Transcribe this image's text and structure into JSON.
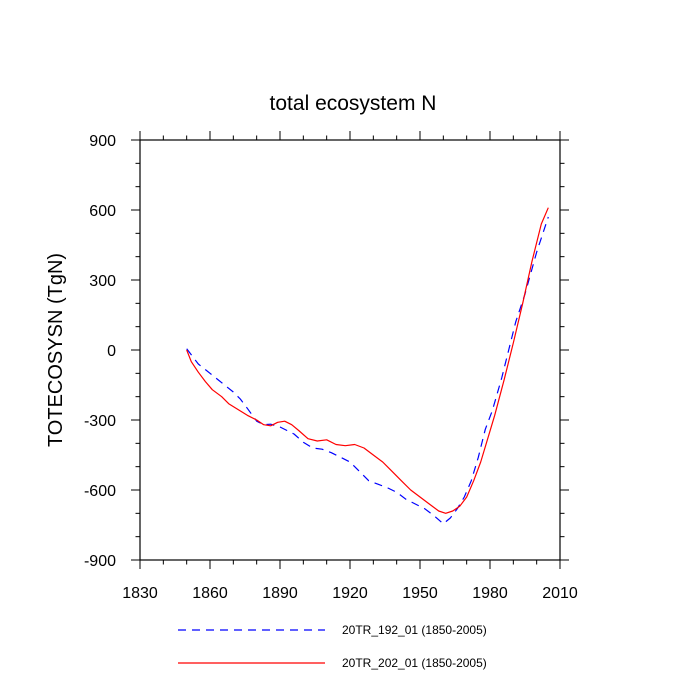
{
  "chart_data": {
    "type": "line",
    "title": "total ecosystem N",
    "xlabel": "",
    "ylabel": "TOTECOSYSN  (TgN)",
    "xlim": [
      1830,
      2010
    ],
    "ylim": [
      -900,
      900
    ],
    "xticks": [
      1830,
      1860,
      1890,
      1920,
      1950,
      1980,
      2010
    ],
    "yticks": [
      -900,
      -600,
      -300,
      0,
      300,
      600,
      900
    ],
    "x_minor_step": 10,
    "y_minor_step": 100,
    "series": [
      {
        "name": "20TR_192_01 (1850-2005)",
        "color": "#0000ff",
        "style": "dashed",
        "x": [
          1850,
          1855,
          1860,
          1865,
          1870,
          1873,
          1876,
          1880,
          1883,
          1886,
          1890,
          1893,
          1896,
          1900,
          1904,
          1908,
          1912,
          1916,
          1920,
          1924,
          1928,
          1932,
          1936,
          1940,
          1944,
          1948,
          1952,
          1956,
          1960,
          1963,
          1966,
          1969,
          1972,
          1975,
          1978,
          1981,
          1985,
          1988,
          1991,
          1995,
          2000,
          2005
        ],
        "values": [
          5,
          -60,
          -100,
          -140,
          -180,
          -210,
          -250,
          -305,
          -320,
          -318,
          -330,
          -345,
          -360,
          -395,
          -420,
          -425,
          -440,
          -460,
          -480,
          -520,
          -560,
          -575,
          -590,
          -610,
          -640,
          -660,
          -680,
          -710,
          -745,
          -720,
          -680,
          -630,
          -560,
          -460,
          -340,
          -260,
          -120,
          0,
          120,
          240,
          420,
          570
        ]
      },
      {
        "name": "20TR_202_01 (1850-2005)",
        "color": "#ff0000",
        "style": "solid",
        "x": [
          1850,
          1852,
          1855,
          1858,
          1861,
          1865,
          1868,
          1872,
          1876,
          1880,
          1883,
          1886,
          1889,
          1892,
          1895,
          1898,
          1902,
          1906,
          1910,
          1914,
          1918,
          1922,
          1926,
          1930,
          1934,
          1938,
          1942,
          1946,
          1950,
          1954,
          1958,
          1961,
          1964,
          1967,
          1970,
          1973,
          1976,
          1979,
          1982,
          1986,
          1990,
          1994,
          1998,
          2002,
          2005
        ],
        "values": [
          0,
          -50,
          -95,
          -135,
          -170,
          -200,
          -230,
          -255,
          -280,
          -300,
          -320,
          -325,
          -310,
          -305,
          -320,
          -345,
          -380,
          -390,
          -385,
          -405,
          -410,
          -405,
          -420,
          -450,
          -480,
          -520,
          -560,
          -600,
          -630,
          -660,
          -690,
          -700,
          -690,
          -670,
          -630,
          -560,
          -480,
          -380,
          -280,
          -130,
          30,
          200,
          380,
          540,
          610
        ]
      }
    ],
    "legend": "bottom"
  }
}
